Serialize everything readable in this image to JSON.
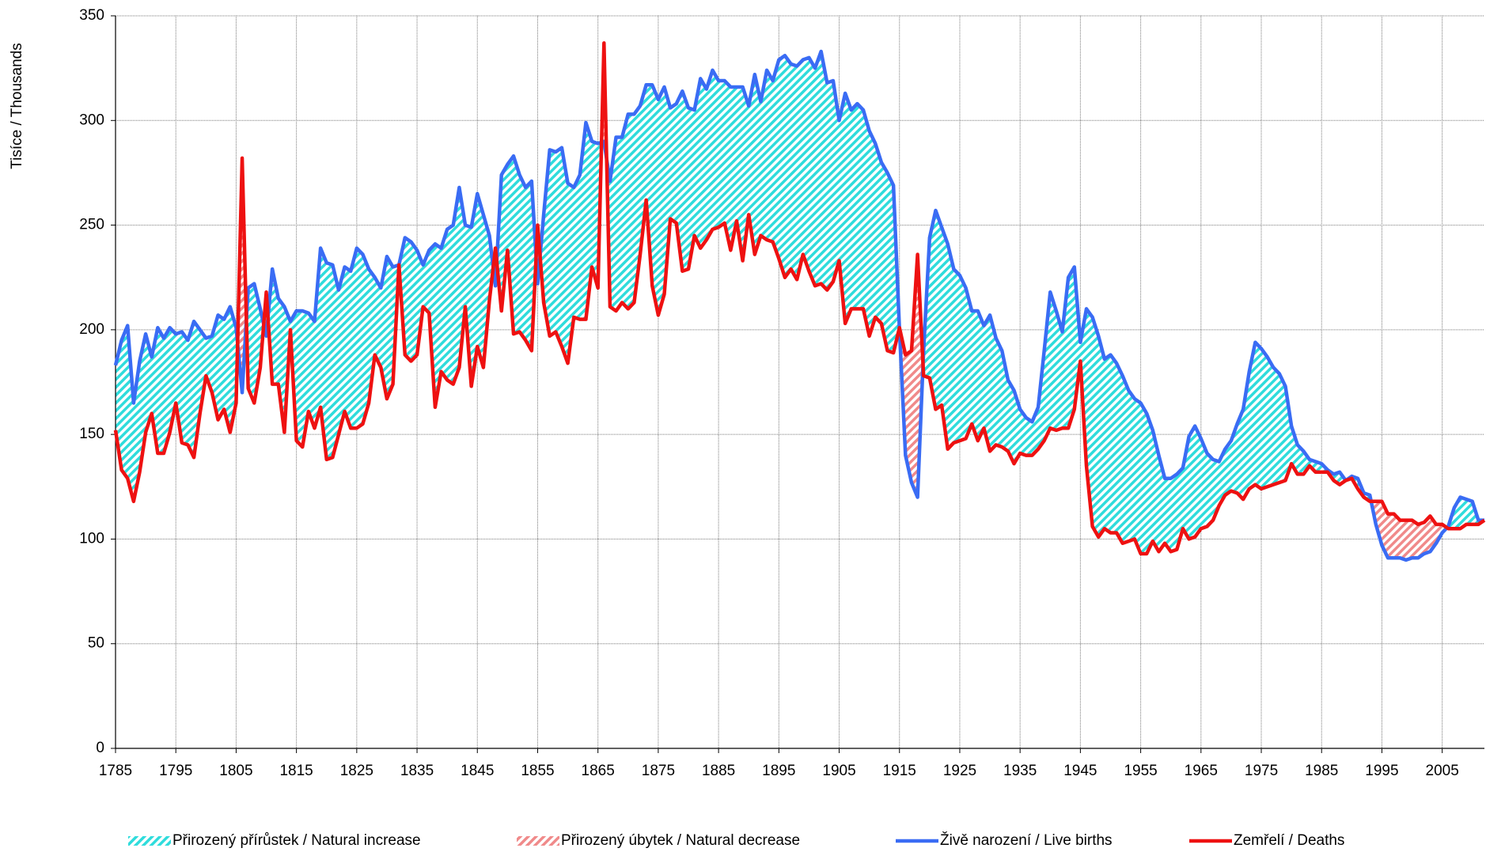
{
  "chart_data": {
    "type": "line",
    "y_label": "Tisíce / Thousands",
    "x": [
      1785,
      1786,
      1787,
      1788,
      1789,
      1790,
      1791,
      1792,
      1793,
      1794,
      1795,
      1796,
      1797,
      1798,
      1799,
      1800,
      1801,
      1802,
      1803,
      1804,
      1805,
      1806,
      1807,
      1808,
      1809,
      1810,
      1811,
      1812,
      1813,
      1814,
      1815,
      1816,
      1817,
      1818,
      1819,
      1820,
      1821,
      1822,
      1823,
      1824,
      1825,
      1826,
      1827,
      1828,
      1829,
      1830,
      1831,
      1832,
      1833,
      1834,
      1835,
      1836,
      1837,
      1838,
      1839,
      1840,
      1841,
      1842,
      1843,
      1844,
      1845,
      1846,
      1847,
      1848,
      1849,
      1850,
      1851,
      1852,
      1853,
      1854,
      1855,
      1856,
      1857,
      1858,
      1859,
      1860,
      1861,
      1862,
      1863,
      1864,
      1865,
      1866,
      1867,
      1868,
      1869,
      1870,
      1871,
      1872,
      1873,
      1874,
      1875,
      1876,
      1877,
      1878,
      1879,
      1880,
      1881,
      1882,
      1883,
      1884,
      1885,
      1886,
      1887,
      1888,
      1889,
      1890,
      1891,
      1892,
      1893,
      1894,
      1895,
      1896,
      1897,
      1898,
      1899,
      1900,
      1901,
      1902,
      1903,
      1904,
      1905,
      1906,
      1907,
      1908,
      1909,
      1910,
      1911,
      1912,
      1913,
      1914,
      1915,
      1916,
      1917,
      1918,
      1919,
      1920,
      1921,
      1922,
      1923,
      1924,
      1925,
      1926,
      1927,
      1928,
      1929,
      1930,
      1931,
      1932,
      1933,
      1934,
      1935,
      1936,
      1937,
      1938,
      1939,
      1940,
      1941,
      1942,
      1943,
      1944,
      1945,
      1946,
      1947,
      1948,
      1949,
      1950,
      1951,
      1952,
      1953,
      1954,
      1955,
      1956,
      1957,
      1958,
      1959,
      1960,
      1961,
      1962,
      1963,
      1964,
      1965,
      1966,
      1967,
      1968,
      1969,
      1970,
      1971,
      1972,
      1973,
      1974,
      1975,
      1976,
      1977,
      1978,
      1979,
      1980,
      1981,
      1982,
      1983,
      1984,
      1985,
      1986,
      1987,
      1988,
      1989,
      1990,
      1991,
      1992,
      1993,
      1994,
      1995,
      1996,
      1997,
      1998,
      1999,
      2000,
      2001,
      2002,
      2003,
      2004,
      2005,
      2006,
      2007,
      2008,
      2009,
      2010,
      2011,
      2012
    ],
    "xlim": [
      1785,
      2012
    ],
    "xticks": [
      1785,
      1795,
      1805,
      1815,
      1825,
      1835,
      1845,
      1855,
      1865,
      1875,
      1885,
      1895,
      1905,
      1915,
      1925,
      1935,
      1945,
      1955,
      1965,
      1975,
      1985,
      1995,
      2005
    ],
    "ylim": [
      0,
      350
    ],
    "yticks": [
      0,
      50,
      100,
      150,
      200,
      250,
      300,
      350
    ],
    "grid": true,
    "fills": [
      {
        "name": "Přirozený přírůstek / Natural increase",
        "color": "#2fdcdc"
      },
      {
        "name": "Přirozený úbytek / Natural decrease",
        "color": "#f08a8a"
      }
    ],
    "series": [
      {
        "name": "Živě narození / Live births",
        "color": "#3a6cf4",
        "values": [
          183,
          195,
          202,
          165,
          185,
          198,
          187,
          201,
          196,
          201,
          198,
          199,
          195,
          204,
          200,
          196,
          197,
          207,
          205,
          211,
          201,
          170,
          220,
          222,
          210,
          197,
          229,
          215,
          211,
          204,
          209,
          209,
          208,
          204,
          239,
          232,
          231,
          219,
          230,
          228,
          239,
          236,
          229,
          225,
          220,
          235,
          230,
          231,
          244,
          242,
          238,
          231,
          238,
          241,
          239,
          248,
          250,
          268,
          250,
          249,
          265,
          255,
          245,
          221,
          274,
          279,
          283,
          274,
          268,
          271,
          222,
          255,
          286,
          285,
          287,
          270,
          268,
          274,
          299,
          290,
          289,
          290,
          271,
          292,
          292,
          303,
          303,
          307,
          317,
          317,
          310,
          316,
          306,
          308,
          314,
          306,
          305,
          320,
          315,
          324,
          319,
          319,
          316,
          316,
          316,
          307,
          322,
          309,
          324,
          319,
          329,
          331,
          327,
          326,
          329,
          330,
          325,
          333,
          318,
          319,
          300,
          313,
          305,
          308,
          305,
          295,
          289,
          280,
          275,
          269,
          200,
          140,
          127,
          120,
          190,
          244,
          257,
          249,
          241,
          229,
          226,
          220,
          209,
          209,
          202,
          207,
          196,
          190,
          176,
          171,
          162,
          158,
          156,
          163,
          190,
          218,
          209,
          199,
          225,
          230,
          194,
          210,
          206,
          197,
          186,
          188,
          184,
          178,
          171,
          167,
          165,
          160,
          152,
          140,
          129,
          129,
          131,
          134,
          149,
          154,
          148,
          141,
          138,
          137,
          143,
          147,
          155,
          162,
          180,
          194,
          191,
          187,
          182,
          179,
          173,
          154,
          145,
          142,
          138,
          137,
          136,
          133,
          131,
          132,
          128,
          130,
          129,
          122,
          121,
          107,
          97,
          91,
          91,
          91,
          90,
          91,
          91,
          93,
          94,
          98,
          103,
          106,
          115,
          120,
          119,
          118,
          109,
          109
        ]
      },
      {
        "name": "Zemřelí / Deaths",
        "color": "#ee1111",
        "values": [
          152,
          133,
          129,
          118,
          132,
          151,
          160,
          141,
          141,
          151,
          165,
          146,
          145,
          139,
          160,
          178,
          170,
          157,
          162,
          151,
          165,
          282,
          172,
          165,
          182,
          218,
          174,
          174,
          151,
          200,
          147,
          144,
          161,
          153,
          163,
          138,
          139,
          150,
          161,
          153,
          153,
          155,
          165,
          188,
          182,
          167,
          174,
          231,
          188,
          185,
          188,
          211,
          208,
          163,
          180,
          176,
          174,
          182,
          211,
          173,
          192,
          182,
          214,
          239,
          209,
          238,
          198,
          199,
          195,
          190,
          250,
          213,
          197,
          199,
          192,
          184,
          206,
          205,
          205,
          230,
          220,
          337,
          211,
          209,
          213,
          210,
          213,
          236,
          262,
          221,
          207,
          217,
          253,
          251,
          228,
          229,
          245,
          239,
          243,
          248,
          249,
          251,
          238,
          252,
          233,
          255,
          236,
          245,
          243,
          242,
          234,
          225,
          229,
          224,
          236,
          228,
          221,
          222,
          219,
          223,
          233,
          203,
          210,
          210,
          210,
          197,
          206,
          203,
          190,
          189,
          201,
          188,
          190,
          236,
          178,
          177,
          162,
          164,
          143,
          146,
          147,
          148,
          155,
          147,
          153,
          142,
          145,
          144,
          142,
          136,
          141,
          140,
          140,
          143,
          147,
          153,
          152,
          153,
          153,
          162,
          185,
          135,
          106,
          101,
          105,
          103,
          103,
          98,
          99,
          100,
          93,
          93,
          99,
          94,
          98,
          94,
          95,
          105,
          100,
          101,
          105,
          106,
          109,
          116,
          121,
          123,
          122,
          119,
          124,
          126,
          124,
          125,
          126,
          127,
          128,
          136,
          131,
          131,
          135,
          132,
          132,
          132,
          128,
          126,
          128,
          129,
          124,
          120,
          118,
          118,
          118,
          112,
          112,
          109,
          109,
          109,
          107,
          108,
          111,
          107,
          107,
          105,
          105,
          105,
          107,
          107,
          107,
          109
        ]
      }
    ]
  }
}
